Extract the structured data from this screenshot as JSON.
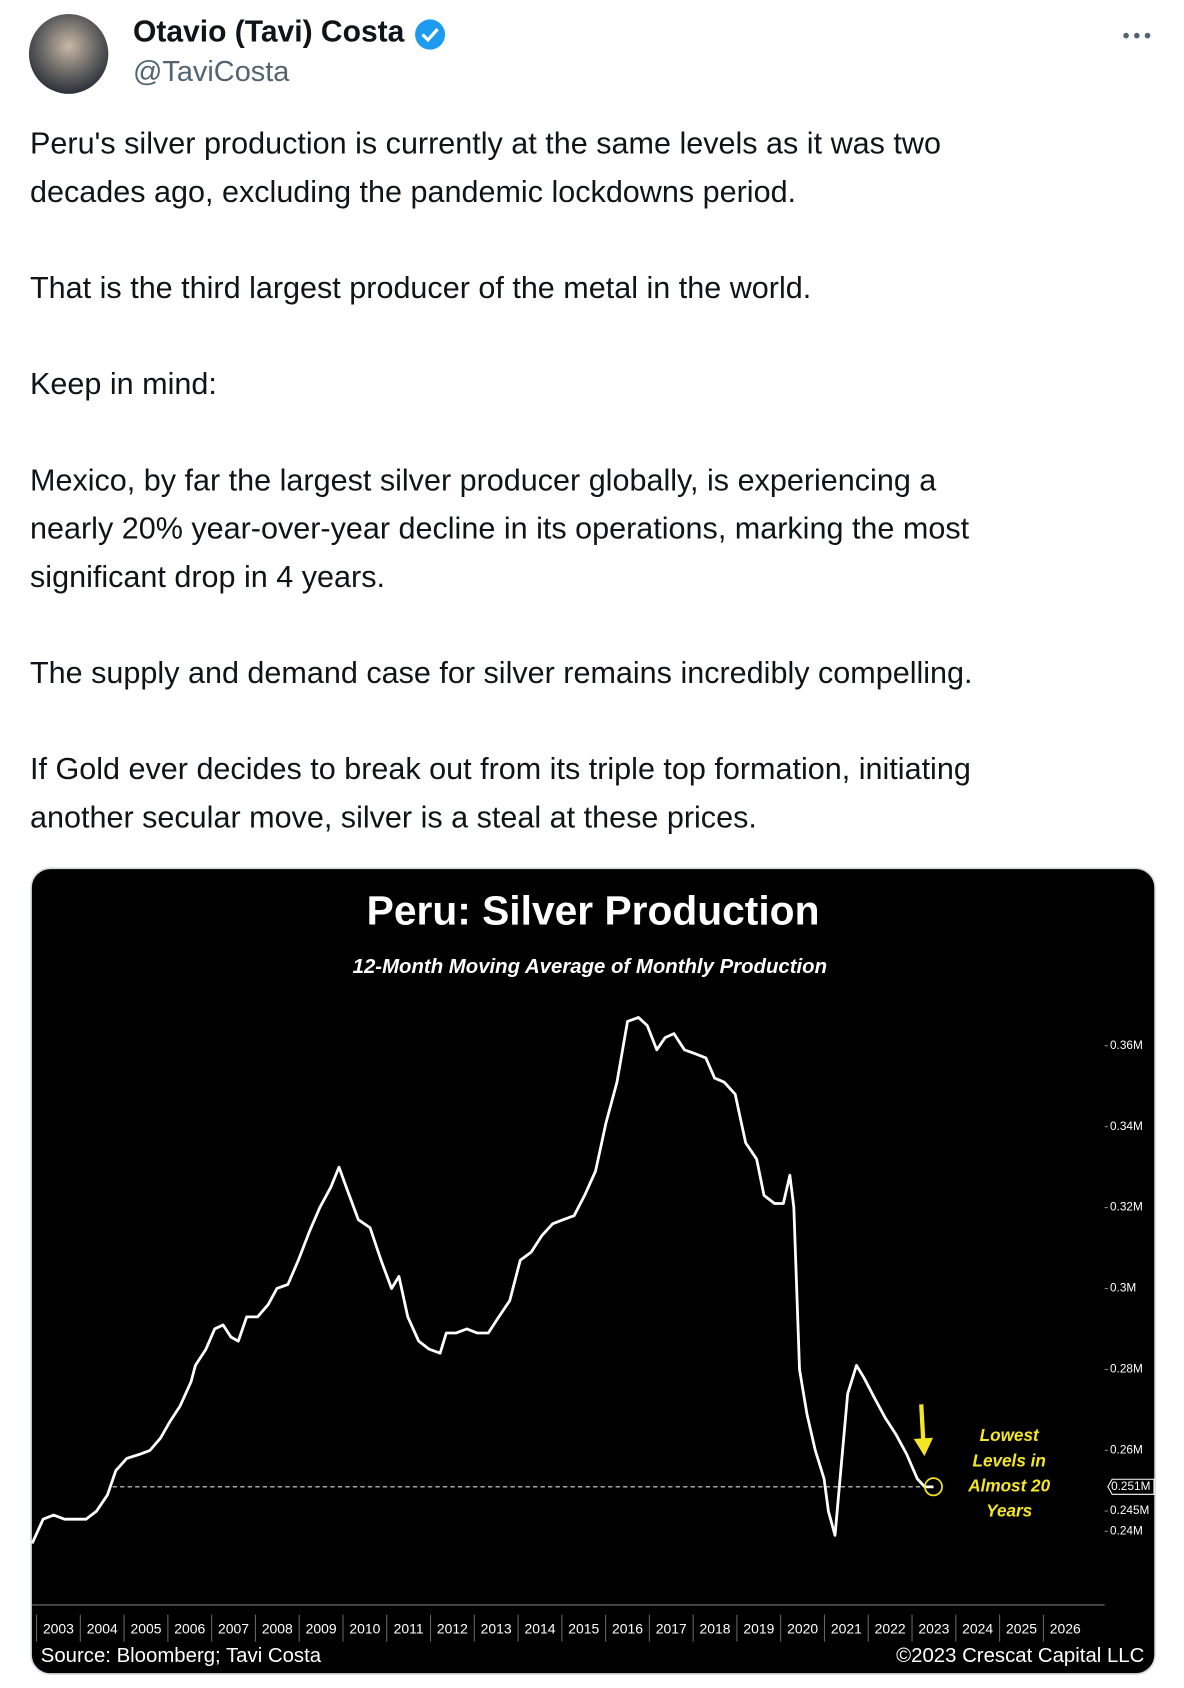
{
  "tweet": {
    "author": "Otavio (Tavi) Costa",
    "handle": "@TaviCosta",
    "paragraphs": [
      [
        "Peru's silver production is currently at the same levels as it was two",
        "decades ago, excluding the pandemic lockdowns period."
      ],
      [
        "That is the third largest producer of the metal in the world."
      ],
      [
        "Keep in mind:"
      ],
      [
        "Mexico, by far the largest silver producer globally, is experiencing a",
        "nearly 20% year-over-year decline in its operations, marking the most",
        "significant drop in 4 years."
      ],
      [
        "The supply and demand case for silver remains incredibly compelling."
      ],
      [
        "If Gold ever decides to break out from its triple top formation, initiating",
        "another secular move, silver is a steal at these prices."
      ]
    ]
  },
  "chart_data": {
    "type": "line",
    "title": "Peru: Silver Production",
    "subtitle": "12-Month Moving Average of Monthly Production",
    "source": "Source: Bloomberg; Tavi Costa",
    "copyright": "©2023 Crescat Capital LLC",
    "annotation": [
      "Lowest",
      "Levels in",
      "Almost 20",
      "Years"
    ],
    "reference_line": {
      "value": 0.251,
      "label": "0.251M"
    },
    "xlim": [
      2002.9,
      2027.4
    ],
    "xticks": [
      2003,
      2004,
      2005,
      2006,
      2007,
      2008,
      2009,
      2010,
      2011,
      2012,
      2013,
      2014,
      2015,
      2016,
      2017,
      2018,
      2019,
      2020,
      2021,
      2022,
      2023,
      2024,
      2025,
      2026
    ],
    "ylim": [
      0.225,
      0.37
    ],
    "yticks": [
      {
        "value": 0.24,
        "label": "0.24M"
      },
      {
        "value": 0.245,
        "label": "0.245M"
      },
      {
        "value": 0.26,
        "label": "0.26M"
      },
      {
        "value": 0.28,
        "label": "0.28M"
      },
      {
        "value": 0.3,
        "label": "0.3M"
      },
      {
        "value": 0.32,
        "label": "0.32M"
      },
      {
        "value": 0.34,
        "label": "0.34M"
      },
      {
        "value": 0.36,
        "label": "0.36M"
      }
    ],
    "series": [
      {
        "color": "#ffffff",
        "x": [
          2002.9,
          2003.15,
          2003.39,
          2003.64,
          2003.88,
          2004.13,
          2004.37,
          2004.62,
          2004.81,
          2005.06,
          2005.35,
          2005.59,
          2005.83,
          2006.04,
          2006.28,
          2006.53,
          2006.63,
          2006.87,
          2007.07,
          2007.26,
          2007.44,
          2007.61,
          2007.8,
          2008.05,
          2008.29,
          2008.49,
          2008.74,
          2008.98,
          2009.23,
          2009.47,
          2009.72,
          2009.91,
          2010.11,
          2010.35,
          2010.62,
          2010.87,
          2011.11,
          2011.28,
          2011.48,
          2011.73,
          2011.97,
          2012.22,
          2012.36,
          2012.58,
          2012.83,
          2013.07,
          2013.32,
          2013.56,
          2013.81,
          2014.05,
          2014.3,
          2014.54,
          2014.79,
          2015.03,
          2015.28,
          2015.52,
          2015.77,
          2016.01,
          2016.26,
          2016.5,
          2016.75,
          2016.95,
          2017.17,
          2017.36,
          2017.56,
          2017.8,
          2018.05,
          2018.29,
          2018.49,
          2018.71,
          2018.96,
          2019.2,
          2019.45,
          2019.62,
          2019.86,
          2020.06,
          2020.21,
          2020.3,
          2020.43,
          2020.6,
          2020.79,
          2020.99,
          2021.09,
          2021.24,
          2021.38,
          2021.53,
          2021.73,
          2021.9,
          2022.14,
          2022.39,
          2022.63,
          2022.88,
          2023.12,
          2023.29,
          2023.49
        ],
        "values": [
          0.237,
          0.243,
          0.244,
          0.243,
          0.243,
          0.243,
          0.245,
          0.249,
          0.255,
          0.258,
          0.259,
          0.26,
          0.263,
          0.267,
          0.271,
          0.277,
          0.281,
          0.285,
          0.29,
          0.291,
          0.288,
          0.287,
          0.293,
          0.293,
          0.296,
          0.3,
          0.301,
          0.307,
          0.314,
          0.32,
          0.325,
          0.33,
          0.324,
          0.317,
          0.315,
          0.307,
          0.3,
          0.303,
          0.293,
          0.287,
          0.285,
          0.284,
          0.289,
          0.289,
          0.29,
          0.289,
          0.289,
          0.293,
          0.297,
          0.307,
          0.309,
          0.313,
          0.316,
          0.317,
          0.318,
          0.323,
          0.329,
          0.341,
          0.351,
          0.366,
          0.367,
          0.365,
          0.359,
          0.362,
          0.363,
          0.359,
          0.358,
          0.357,
          0.352,
          0.351,
          0.348,
          0.336,
          0.332,
          0.323,
          0.321,
          0.321,
          0.328,
          0.32,
          0.28,
          0.269,
          0.26,
          0.253,
          0.245,
          0.239,
          0.256,
          0.274,
          0.281,
          0.278,
          0.273,
          0.268,
          0.264,
          0.259,
          0.253,
          0.251,
          0.251
        ]
      }
    ]
  }
}
